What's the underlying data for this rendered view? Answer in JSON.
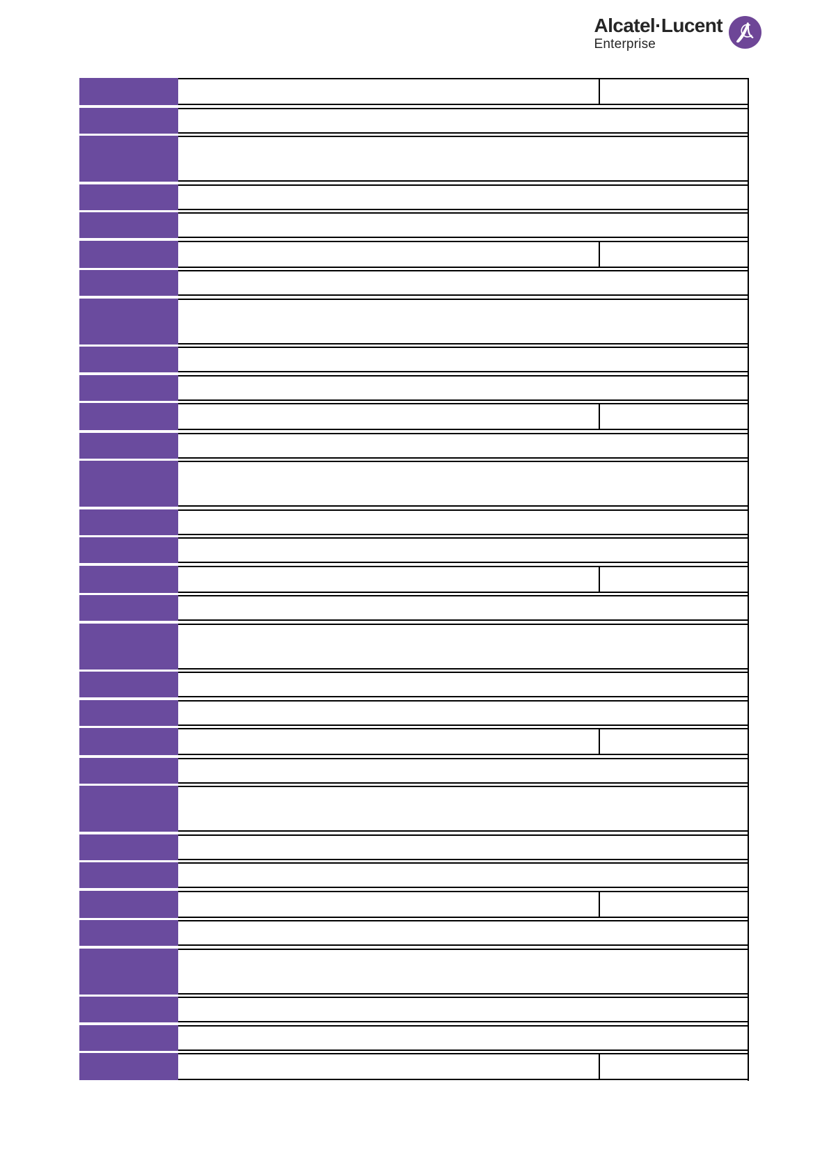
{
  "page": {
    "background": "#ffffff"
  },
  "header": {
    "logo": {
      "brand_name": "Alcatel·Lucent",
      "sub_brand": "Enterprise",
      "icon": "alcatel-lucent-swoosh-icon",
      "text_color": "#262626",
      "circle_color": "#6E4697",
      "glyph_color": "#ffffff"
    }
  },
  "table": {
    "purple_cell_color": "#6A4B9E",
    "border_color": "#000000",
    "description": "Blank specification table: purple label column, empty white value cells; split rows contain a second narrow value cell",
    "rows": [
      {
        "type": "split",
        "label": "",
        "value": "",
        "value_right": ""
      },
      {
        "type": "normal",
        "label": "",
        "value": ""
      },
      {
        "type": "tall",
        "label": "",
        "value": ""
      },
      {
        "type": "normal",
        "label": "",
        "value": ""
      },
      {
        "type": "normal",
        "label": "",
        "value": ""
      },
      {
        "type": "split",
        "label": "",
        "value": "",
        "value_right": ""
      },
      {
        "type": "normal",
        "label": "",
        "value": ""
      },
      {
        "type": "tall",
        "label": "",
        "value": ""
      },
      {
        "type": "normal",
        "label": "",
        "value": ""
      },
      {
        "type": "normal",
        "label": "",
        "value": ""
      },
      {
        "type": "split",
        "label": "",
        "value": "",
        "value_right": ""
      },
      {
        "type": "normal",
        "label": "",
        "value": ""
      },
      {
        "type": "tall",
        "label": "",
        "value": ""
      },
      {
        "type": "normal",
        "label": "",
        "value": ""
      },
      {
        "type": "normal",
        "label": "",
        "value": ""
      },
      {
        "type": "split",
        "label": "",
        "value": "",
        "value_right": ""
      },
      {
        "type": "normal",
        "label": "",
        "value": ""
      },
      {
        "type": "tall",
        "label": "",
        "value": ""
      },
      {
        "type": "normal",
        "label": "",
        "value": ""
      },
      {
        "type": "normal",
        "label": "",
        "value": ""
      },
      {
        "type": "split",
        "label": "",
        "value": "",
        "value_right": ""
      },
      {
        "type": "normal",
        "label": "",
        "value": ""
      },
      {
        "type": "tall",
        "label": "",
        "value": ""
      },
      {
        "type": "normal",
        "label": "",
        "value": ""
      },
      {
        "type": "normal",
        "label": "",
        "value": ""
      },
      {
        "type": "split",
        "label": "",
        "value": "",
        "value_right": ""
      },
      {
        "type": "normal",
        "label": "",
        "value": ""
      },
      {
        "type": "tall",
        "label": "",
        "value": ""
      },
      {
        "type": "normal",
        "label": "",
        "value": ""
      },
      {
        "type": "normal",
        "label": "",
        "value": ""
      },
      {
        "type": "split",
        "label": "",
        "value": "",
        "value_right": ""
      }
    ]
  }
}
